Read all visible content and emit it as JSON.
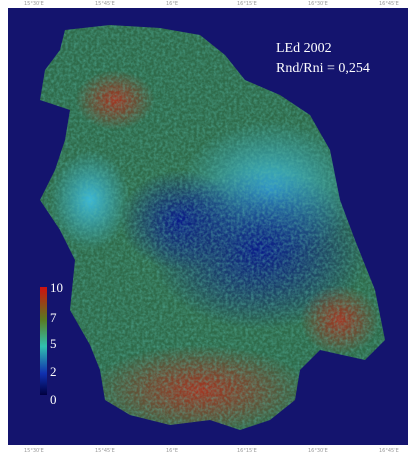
{
  "annotation": {
    "title": "LEd 2002",
    "ratio": "Rnd/Rni = 0,254"
  },
  "legend": {
    "ticks": [
      "10",
      "7",
      "5",
      "2",
      "0"
    ]
  },
  "graticule": {
    "longitudes": [
      "15°30'E",
      "15°45'E",
      "16°E",
      "16°15'E",
      "16°30'E",
      "16°45'E"
    ]
  }
}
